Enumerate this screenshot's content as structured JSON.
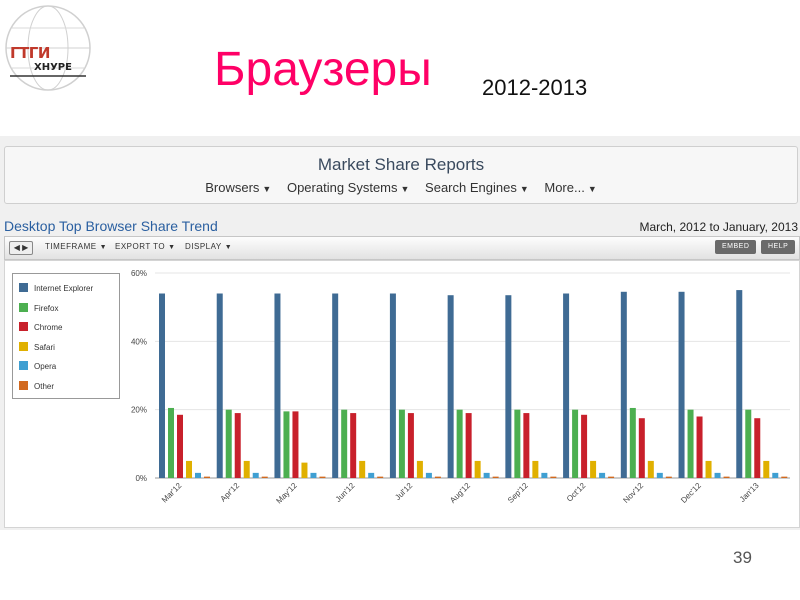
{
  "slide": {
    "title": "Браузеры",
    "subtitle": "2012-2013",
    "page_number": "39",
    "logo_text": "ГТГИ",
    "logo_sub": "ХНУРЕ"
  },
  "report": {
    "title": "Market Share Reports",
    "nav": [
      {
        "label": "Browsers"
      },
      {
        "label": "Operating Systems"
      },
      {
        "label": "Search Engines"
      },
      {
        "label": "More..."
      }
    ],
    "chart_heading": "Desktop Top Browser Share Trend",
    "date_range": "March, 2012 to January, 2013",
    "toolbar": {
      "timeframe": "TIMEFRAME",
      "export": "EXPORT TO",
      "display": "DISPLAY",
      "embed": "EMBED",
      "help": "HELP"
    }
  },
  "colors": {
    "title": "#ff0066",
    "ie": "#3f6b94",
    "firefox": "#4caf50",
    "chrome": "#c8202b",
    "safari": "#e0b000",
    "opera": "#3f9fd2",
    "other": "#d2691e"
  },
  "chart_data": {
    "type": "bar",
    "title": "Desktop Top Browser Share Trend",
    "categories": [
      "Mar'12",
      "Apr'12",
      "May'12",
      "Jun'12",
      "Jul'12",
      "Aug'12",
      "Sep'12",
      "Oct'12",
      "Nov'12",
      "Dec'12",
      "Jan'13"
    ],
    "ylim": [
      0,
      60
    ],
    "yticks": [
      "0%",
      "20%",
      "40%",
      "60%"
    ],
    "grid": true,
    "legend_position": "left",
    "series": [
      {
        "name": "Internet Explorer",
        "color_key": "ie",
        "values": [
          54,
          54,
          54,
          54,
          54,
          53.5,
          53.5,
          54,
          54.5,
          54.5,
          55
        ]
      },
      {
        "name": "Firefox",
        "color_key": "firefox",
        "values": [
          20.5,
          20,
          19.5,
          20,
          20,
          20,
          20,
          20,
          20.5,
          20,
          20
        ]
      },
      {
        "name": "Chrome",
        "color_key": "chrome",
        "values": [
          18.5,
          19,
          19.5,
          19,
          19,
          19,
          19,
          18.5,
          17.5,
          18,
          17.5
        ]
      },
      {
        "name": "Safari",
        "color_key": "safari",
        "values": [
          5,
          5,
          4.5,
          5,
          5,
          5,
          5,
          5,
          5,
          5,
          5
        ]
      },
      {
        "name": "Opera",
        "color_key": "opera",
        "values": [
          1.5,
          1.5,
          1.5,
          1.5,
          1.5,
          1.5,
          1.5,
          1.5,
          1.5,
          1.5,
          1.5
        ]
      },
      {
        "name": "Other",
        "color_key": "other",
        "values": [
          0.4,
          0.4,
          0.4,
          0.4,
          0.4,
          0.4,
          0.4,
          0.4,
          0.4,
          0.4,
          0.4
        ]
      }
    ]
  }
}
